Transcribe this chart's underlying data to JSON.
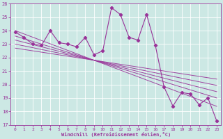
{
  "xlabel": "Windchill (Refroidissement éolien,°C)",
  "bg_color": "#cce8e4",
  "line_color": "#993399",
  "grid_color": "#b0d8d4",
  "x_data": [
    0,
    1,
    2,
    3,
    4,
    5,
    6,
    7,
    8,
    9,
    10,
    11,
    12,
    13,
    14,
    15,
    16,
    17,
    18,
    19,
    20,
    21,
    22,
    23
  ],
  "y_data": [
    23.9,
    23.5,
    23.0,
    22.9,
    24.0,
    23.1,
    23.0,
    22.8,
    23.5,
    22.2,
    22.5,
    25.7,
    25.2,
    23.5,
    23.3,
    25.2,
    22.9,
    19.8,
    18.4,
    19.4,
    19.3,
    18.5,
    19.0,
    17.3
  ],
  "ylim": [
    17,
    26
  ],
  "xlim": [
    -0.5,
    23.5
  ],
  "yticks": [
    17,
    18,
    19,
    20,
    21,
    22,
    23,
    24,
    25,
    26
  ],
  "xticks": [
    0,
    1,
    2,
    3,
    4,
    5,
    6,
    7,
    8,
    9,
    10,
    11,
    12,
    13,
    14,
    15,
    16,
    17,
    18,
    19,
    20,
    21,
    22,
    23
  ],
  "trend_lines": [
    {
      "x0": 0,
      "y0": 23.9,
      "x1": 23,
      "y1": 18.4
    },
    {
      "x0": 0,
      "y0": 23.5,
      "x1": 23,
      "y1": 18.6
    },
    {
      "x0": 0,
      "y0": 23.2,
      "x1": 23,
      "y1": 18.8
    },
    {
      "x0": 0,
      "y0": 23.9,
      "x1": 23,
      "y1": 19.6
    },
    {
      "x0": 0,
      "y0": 23.5,
      "x1": 23,
      "y1": 19.8
    }
  ]
}
